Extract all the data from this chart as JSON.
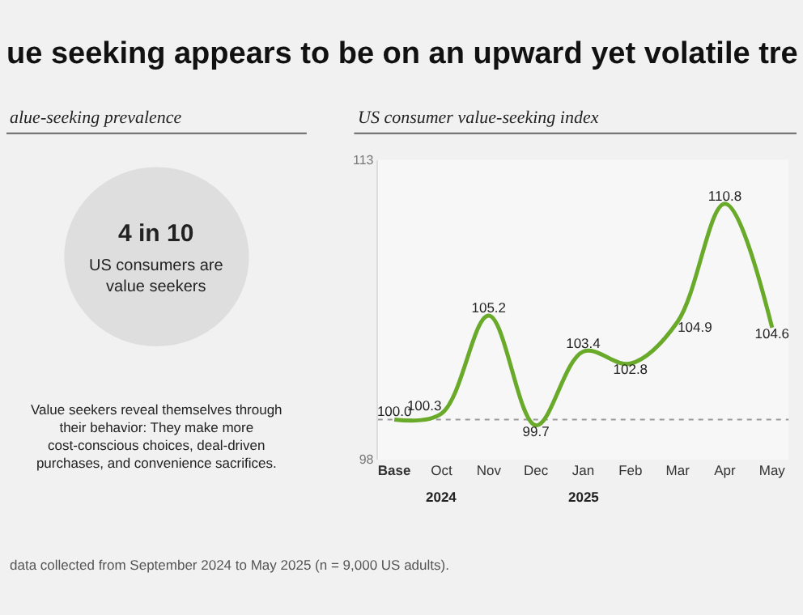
{
  "chart_data": [
    {
      "type": "other",
      "title": "ue seeking appears to be on an upward yet volatile tre",
      "subtitle": "alue-seeking prevalence",
      "annotations": [
        "4 in 10",
        "US consumers are value seekers",
        "Value seekers reveal themselves through their behavior: They make more cost-conscious choices, deal-driven purchases, and convenience sacrifices.",
        "data collected from September 2024 to May 2025 (n = 9,000 US adults)."
      ]
    },
    {
      "type": "line",
      "title": "US consumer value-seeking index",
      "categories": [
        "Base",
        "Oct",
        "Nov",
        "Dec",
        "Jan",
        "Feb",
        "Mar",
        "Apr",
        "May"
      ],
      "series": [
        {
          "color": "#6aaa2a",
          "values": [
            100.0,
            100.3,
            105.2,
            99.7,
            103.4,
            102.8,
            104.9,
            110.8,
            104.6
          ],
          "value_labels": [
            "100.0",
            "100.3",
            "105.2",
            "99.7",
            "103.4",
            "102.8",
            "104.9",
            "110.8",
            "104.6"
          ]
        }
      ],
      "ylim": [
        98,
        113
      ],
      "yticks": [
        98,
        113
      ],
      "grid": false,
      "ref_lines": [
        {
          "axis": "y",
          "value": 100,
          "color": "#999999",
          "line_style": "dotted"
        }
      ],
      "annotations": [
        "2024",
        "2025"
      ]
    }
  ]
}
